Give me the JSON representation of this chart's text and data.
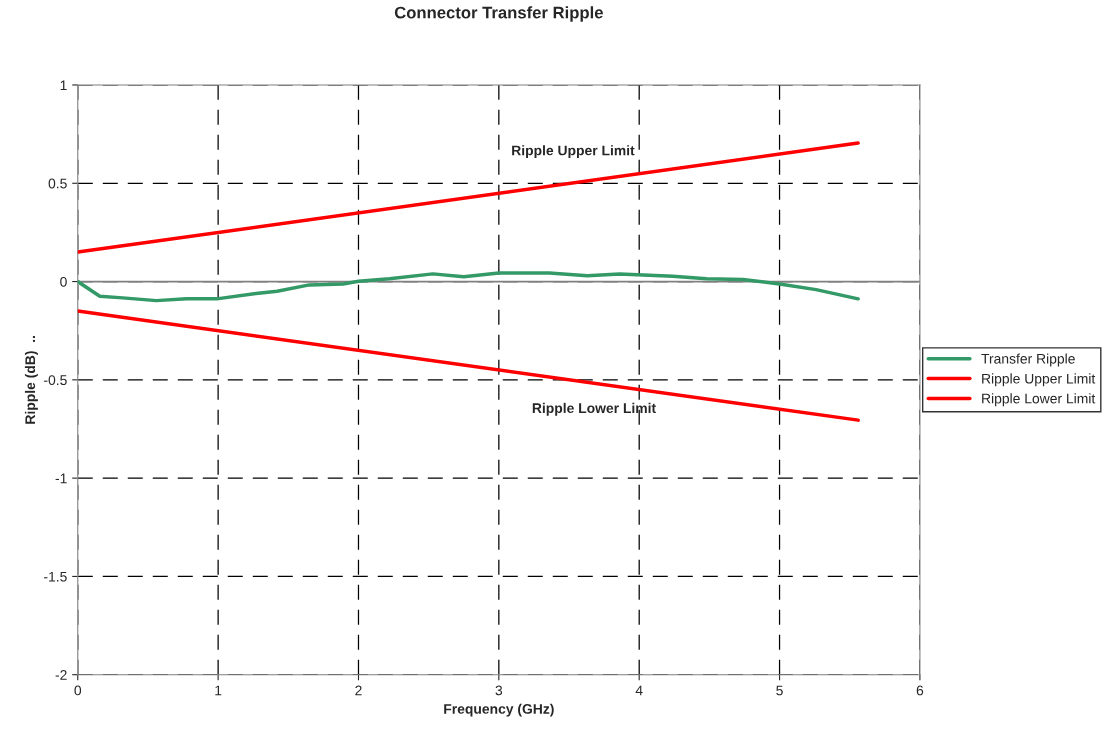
{
  "chart_data": {
    "type": "line",
    "title": "Connector Transfer Ripple",
    "xlabel": "Frequency (GHz)",
    "ylabel": "Ripple (dB)  ..",
    "series": [
      {
        "name": "Transfer Ripple",
        "color": "#339966",
        "x": [
          0,
          0.157,
          0.32,
          0.56,
          0.775,
          0.99,
          1.27,
          1.42,
          1.65,
          1.89,
          2.0,
          2.22,
          2.53,
          2.75,
          3.0,
          3.36,
          3.63,
          3.86,
          4.24,
          4.48,
          4.74,
          5.0,
          5.26,
          5.56
        ],
        "values": [
          0,
          -0.075,
          -0.083,
          -0.097,
          -0.088,
          -0.088,
          -0.061,
          -0.049,
          -0.017,
          -0.012,
          0.002,
          0.014,
          0.039,
          0.024,
          0.044,
          0.044,
          0.03,
          0.039,
          0.027,
          0.014,
          0.01,
          -0.012,
          -0.041,
          -0.088
        ]
      },
      {
        "name": "Ripple Upper Limit",
        "color": "#ff0000",
        "x": [
          0,
          5.56
        ],
        "values": [
          0.15,
          0.705
        ]
      },
      {
        "name": "Ripple Lower Limit",
        "color": "#ff0000",
        "x": [
          0,
          5.56
        ],
        "values": [
          -0.15,
          -0.705
        ]
      }
    ],
    "annotations": [
      "Ripple Upper Limit",
      "Ripple Lower Limit"
    ],
    "ref_lines": [
      {
        "axis": "y",
        "value": 0,
        "color": "#808080"
      }
    ],
    "xlim": [
      0,
      6
    ],
    "xticks": [
      0,
      1,
      2,
      3,
      4,
      5,
      6
    ],
    "ylim": [
      -2,
      1
    ],
    "yticks": [
      -2,
      -1.5,
      -1,
      -0.5,
      0,
      0.5,
      1
    ],
    "grid": true,
    "legend": "right",
    "line_style": "solid",
    "marker": "none"
  }
}
